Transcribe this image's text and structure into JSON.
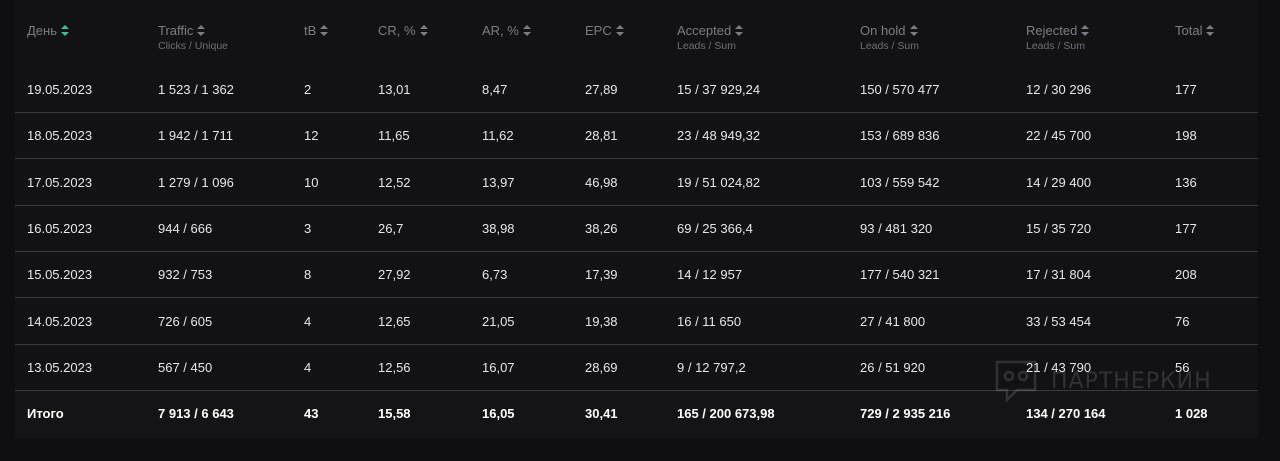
{
  "headers": [
    {
      "label": "День",
      "sub": "",
      "active": true
    },
    {
      "label": "Traffic",
      "sub": "Clicks / Unique",
      "active": false
    },
    {
      "label": "tB",
      "sub": "",
      "active": false
    },
    {
      "label": "CR, %",
      "sub": "",
      "active": false
    },
    {
      "label": "AR, %",
      "sub": "",
      "active": false
    },
    {
      "label": "EPC",
      "sub": "",
      "active": false
    },
    {
      "label": "Accepted",
      "sub": "Leads / Sum",
      "active": false
    },
    {
      "label": "On hold",
      "sub": "Leads / Sum",
      "active": false
    },
    {
      "label": "Rejected",
      "sub": "Leads / Sum",
      "active": false
    },
    {
      "label": "Total",
      "sub": "",
      "active": false
    }
  ],
  "rows": [
    [
      "19.05.2023",
      "1 523 / 1 362",
      "2",
      "13,01",
      "8,47",
      "27,89",
      "15 / 37 929,24",
      "150 / 570 477",
      "12 / 30 296",
      "177"
    ],
    [
      "18.05.2023",
      "1 942 / 1 711",
      "12",
      "11,65",
      "11,62",
      "28,81",
      "23 / 48 949,32",
      "153 / 689 836",
      "22 / 45 700",
      "198"
    ],
    [
      "17.05.2023",
      "1 279 / 1 096",
      "10",
      "12,52",
      "13,97",
      "46,98",
      "19 / 51 024,82",
      "103 / 559 542",
      "14 / 29 400",
      "136"
    ],
    [
      "16.05.2023",
      "944 / 666",
      "3",
      "26,7",
      "38,98",
      "38,26",
      "69 / 25 366,4",
      "93 / 481 320",
      "15 / 35 720",
      "177"
    ],
    [
      "15.05.2023",
      "932 / 753",
      "8",
      "27,92",
      "6,73",
      "17,39",
      "14 / 12 957",
      "177 / 540 321",
      "17 / 31 804",
      "208"
    ],
    [
      "14.05.2023",
      "726 / 605",
      "4",
      "12,65",
      "21,05",
      "19,38",
      "16 / 11 650",
      "27 / 41 800",
      "33 / 53 454",
      "76"
    ],
    [
      "13.05.2023",
      "567 / 450",
      "4",
      "12,56",
      "16,07",
      "28,69",
      "9 / 12 797,2",
      "26 / 51 920",
      "21 / 43 790",
      "56"
    ]
  ],
  "total": [
    "Итого",
    "7 913 / 6 643",
    "43",
    "15,58",
    "16,05",
    "30,41",
    "165 / 200 673,98",
    "729 / 2 935 216",
    "134 / 270 164",
    "1 028"
  ],
  "watermark": {
    "text": "ПАРТНЕРКИН"
  },
  "colors": {
    "sort_active": "#3fbf8f",
    "divider": "#3a3a40",
    "background": "#121214"
  }
}
